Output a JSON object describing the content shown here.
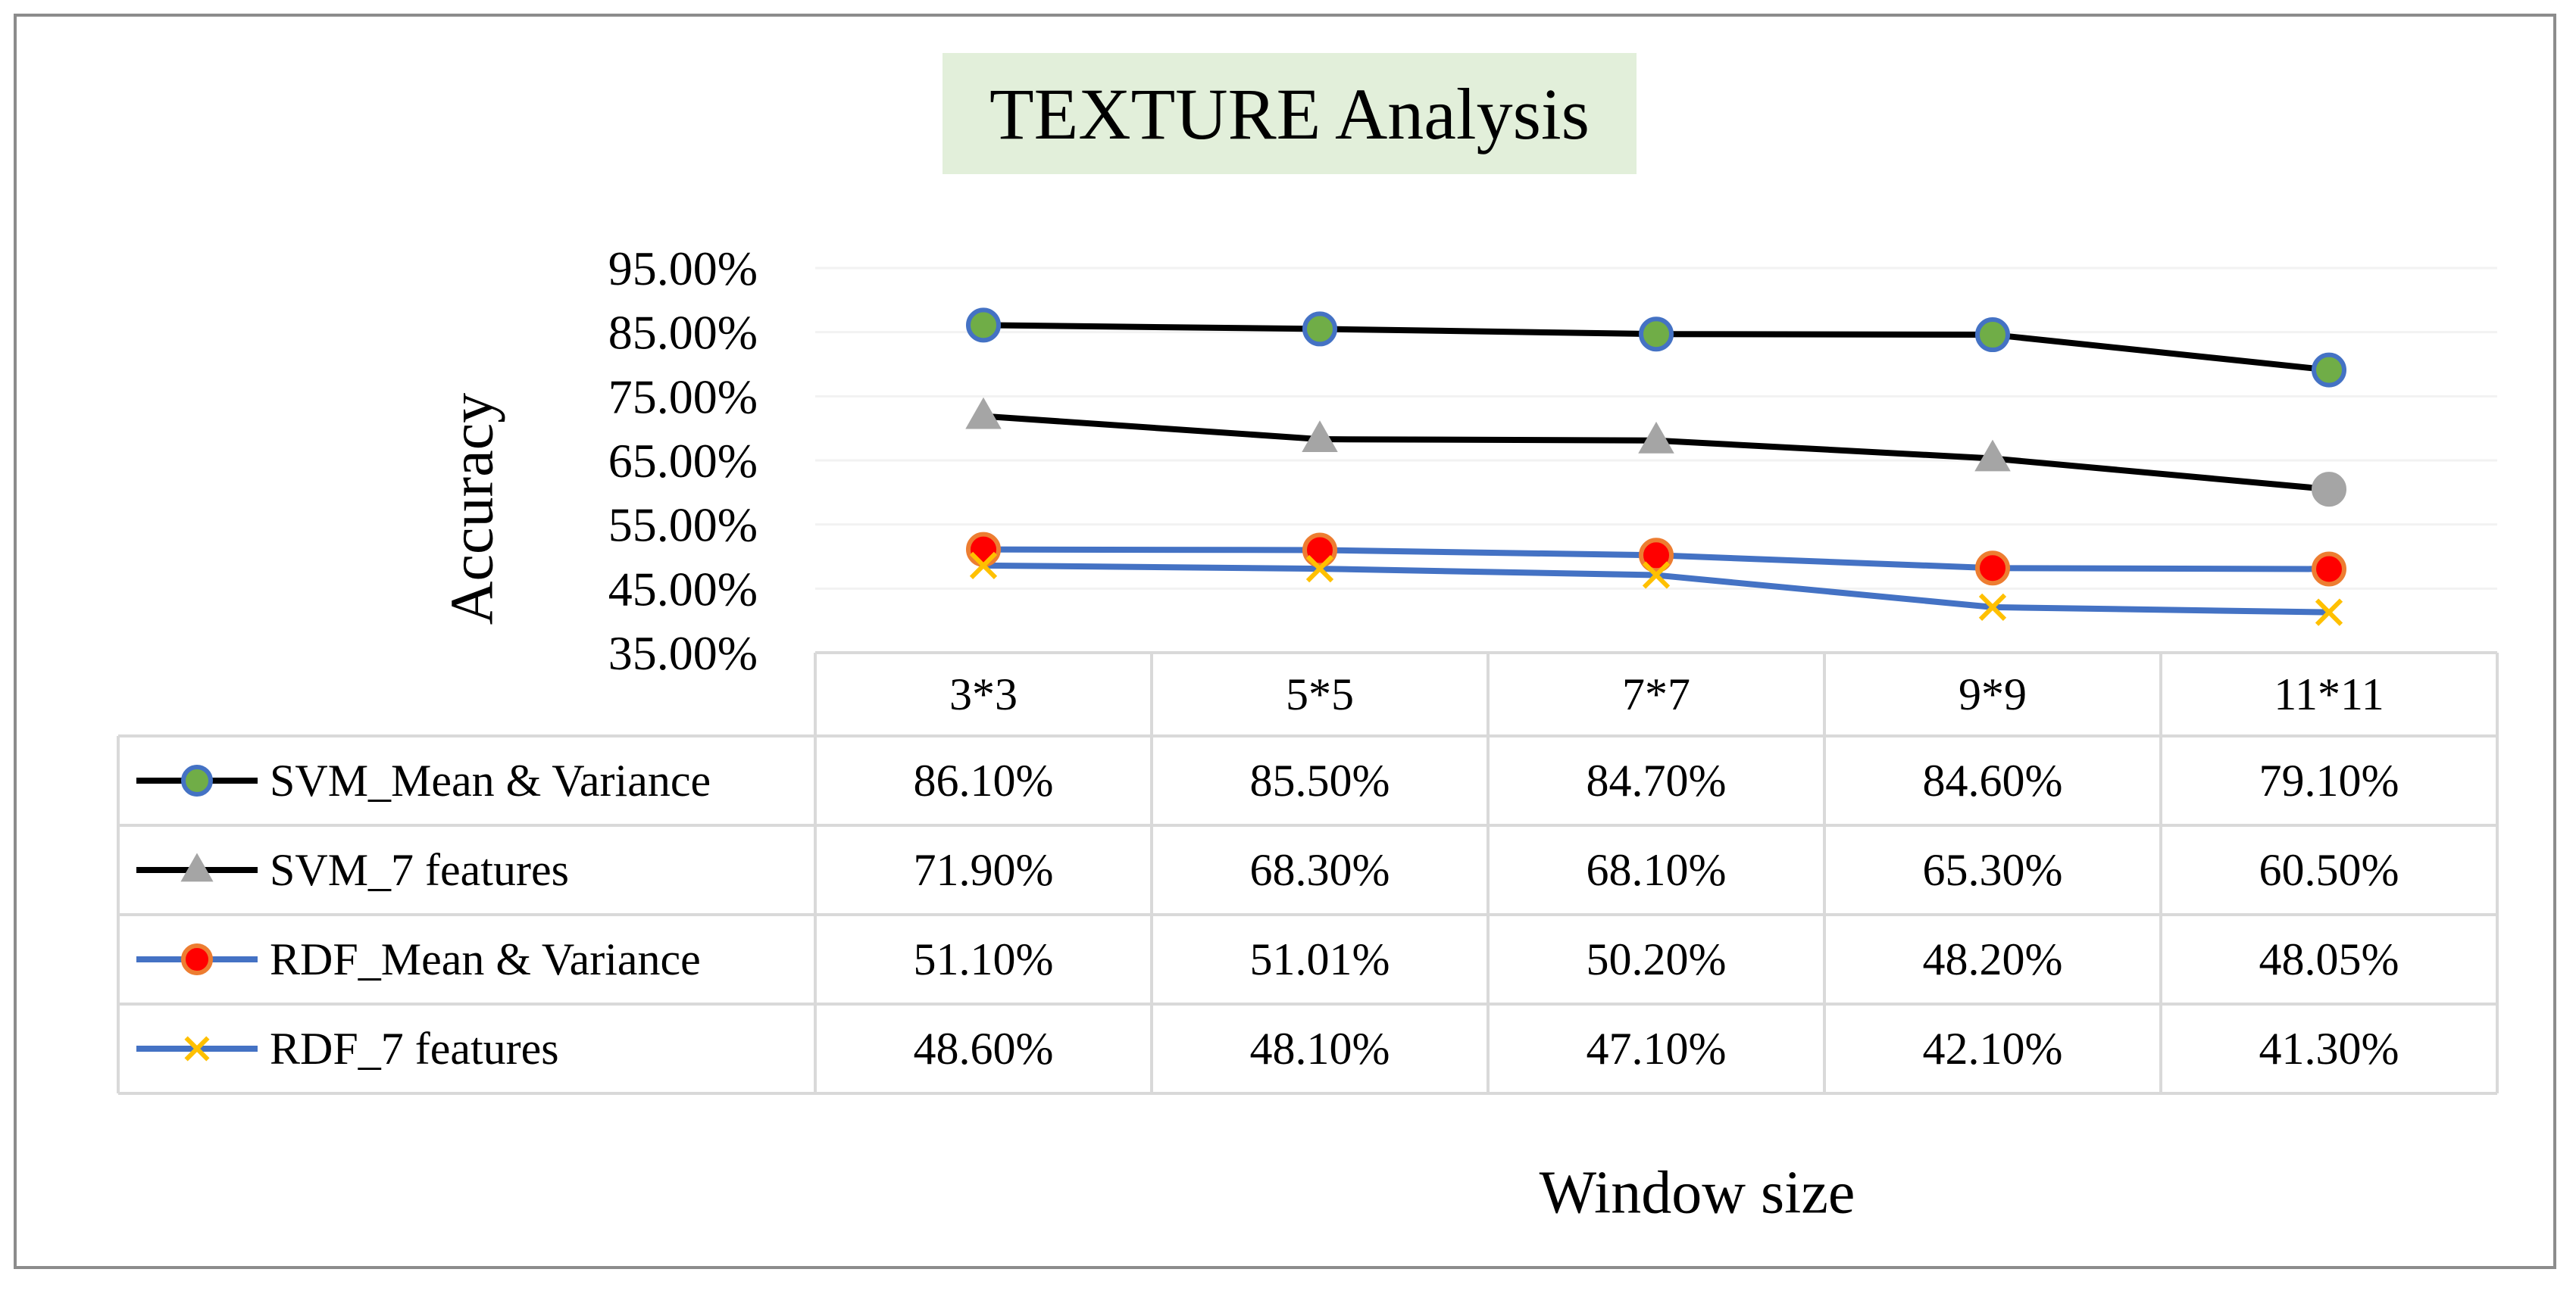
{
  "chart_data": {
    "type": "line",
    "title": "TEXTURE Analysis",
    "xlabel": "Window size",
    "ylabel": "Accuracy",
    "categories": [
      "3*3",
      "5*5",
      "7*7",
      "9*9",
      "11*11"
    ],
    "ylim": [
      35,
      95
    ],
    "yticks": [
      "35.00%",
      "45.00%",
      "55.00%",
      "65.00%",
      "75.00%",
      "85.00%",
      "95.00%"
    ],
    "grid": true,
    "legend": "data-table",
    "series": [
      {
        "name": "SVM_Mean & Variance",
        "values": [
          86.1,
          85.5,
          84.7,
          84.6,
          79.1
        ],
        "labels": [
          "86.10%",
          "85.50%",
          "84.70%",
          "84.60%",
          "79.10%"
        ],
        "line_color": "#000000",
        "marker": "circle",
        "marker_fill": "#70ad47",
        "marker_stroke": "#4472c4"
      },
      {
        "name": "SVM_7 features",
        "values": [
          71.9,
          68.3,
          68.1,
          65.3,
          60.5
        ],
        "labels": [
          "71.90%",
          "68.30%",
          "68.10%",
          "65.30%",
          "60.50%"
        ],
        "line_color": "#000000",
        "marker": "triangle",
        "marker_fill": "#a5a5a5",
        "marker_stroke": "#a5a5a5"
      },
      {
        "name": "RDF_Mean & Variance",
        "values": [
          51.1,
          51.01,
          50.2,
          48.2,
          48.05
        ],
        "labels": [
          "51.10%",
          "51.01%",
          "50.20%",
          "48.20%",
          "48.05%"
        ],
        "line_color": "#4472c4",
        "marker": "circle",
        "marker_fill": "#ff0000",
        "marker_stroke": "#ed7d31"
      },
      {
        "name": "RDF_7 features",
        "values": [
          48.6,
          48.1,
          47.1,
          42.1,
          41.3
        ],
        "labels": [
          "48.60%",
          "48.10%",
          "47.10%",
          "42.10%",
          "41.30%"
        ],
        "line_color": "#4472c4",
        "marker": "x",
        "marker_fill": "#ffc000",
        "marker_stroke": "#ffc000"
      }
    ]
  },
  "colors": {
    "frame": "#8c8c8c",
    "title_background": "#e2efda",
    "gridline": "#f2f2f2",
    "table_border": "#d9d9d9"
  }
}
